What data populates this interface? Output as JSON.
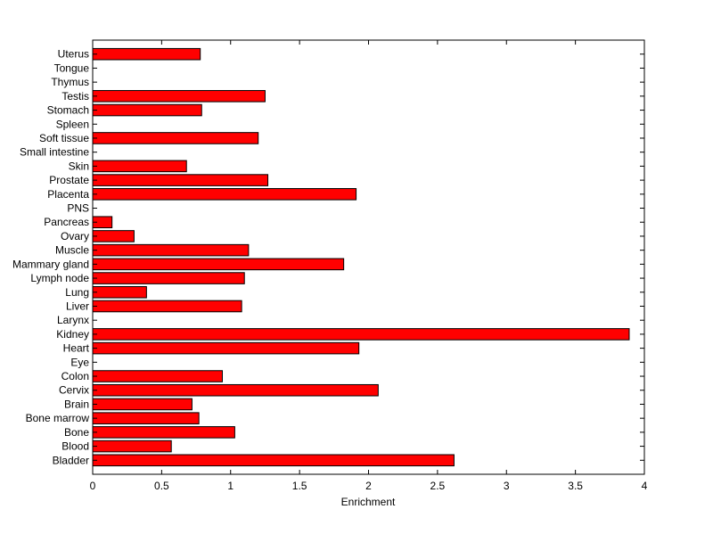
{
  "chart_data": {
    "type": "bar",
    "orientation": "horizontal",
    "title": "",
    "xlabel": "Enrichment",
    "ylabel": "",
    "xlim": [
      0,
      4
    ],
    "xticks": [
      0,
      0.5,
      1,
      1.5,
      2,
      2.5,
      3,
      3.5,
      4
    ],
    "xtick_labels": [
      "0",
      "0.5",
      "1",
      "1.5",
      "2",
      "2.5",
      "3",
      "3.5",
      "4"
    ],
    "grid": false,
    "bar_color": "#ff0000",
    "categories": [
      "Bladder",
      "Blood",
      "Bone",
      "Bone marrow",
      "Brain",
      "Cervix",
      "Colon",
      "Eye",
      "Heart",
      "Kidney",
      "Larynx",
      "Liver",
      "Lung",
      "Lymph node",
      "Mammary gland",
      "Muscle",
      "Ovary",
      "Pancreas",
      "PNS",
      "Placenta",
      "Prostate",
      "Skin",
      "Small intestine",
      "Soft tissue",
      "Spleen",
      "Stomach",
      "Testis",
      "Thymus",
      "Tongue",
      "Uterus"
    ],
    "values": [
      2.62,
      0.57,
      1.03,
      0.77,
      0.72,
      2.07,
      0.94,
      0,
      1.93,
      3.89,
      0,
      1.08,
      0.39,
      1.1,
      1.82,
      1.13,
      0.3,
      0.14,
      0,
      1.91,
      1.27,
      0.68,
      0,
      1.2,
      0,
      0.79,
      1.25,
      0,
      0,
      0.78
    ]
  }
}
